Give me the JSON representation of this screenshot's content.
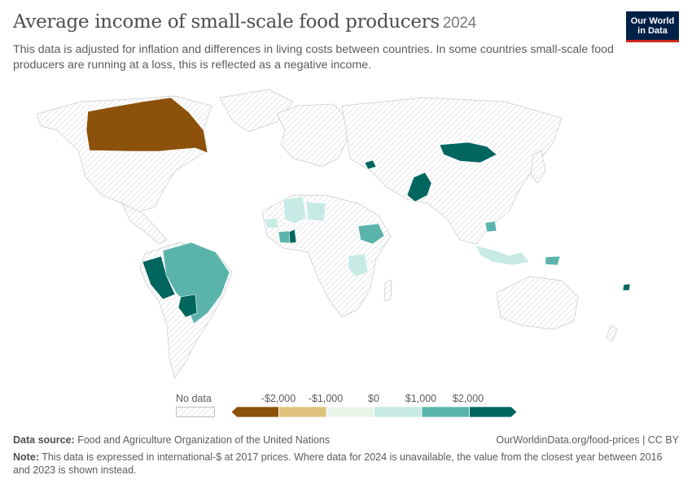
{
  "header": {
    "title": "Average income of small-scale food producers",
    "year": "2024",
    "subtitle": "This data is adjusted for inflation and differences in living costs between countries. In some countries small-scale food producers are running at a loss, this is reflected as a negative income."
  },
  "logo": {
    "line1": "Our World",
    "line2": "in Data",
    "color": "#002147",
    "accent": "#ce261e"
  },
  "legend": {
    "no_data_label": "No data",
    "ticks": [
      "-$2,000",
      "-$1,000",
      "$0",
      "$1,000",
      "$2,000"
    ],
    "colors": [
      "#8c510a",
      "#dfc27d",
      "#e8f4e8",
      "#c7eae5",
      "#5ab4ac",
      "#01665e"
    ]
  },
  "map_data": {
    "type": "choropleth",
    "unit": "international-$",
    "regions": [
      {
        "country": "Canada",
        "bin": 0
      },
      {
        "country": "Peru",
        "bin": 5
      },
      {
        "country": "Brazil",
        "bin": 4
      },
      {
        "country": "Paraguay",
        "bin": 5
      },
      {
        "country": "Mongolia",
        "bin": 5
      },
      {
        "country": "Pakistan",
        "bin": 5
      },
      {
        "country": "Armenia",
        "bin": 5
      },
      {
        "country": "Ghana",
        "bin": 5
      },
      {
        "country": "Ethiopia",
        "bin": 4
      },
      {
        "country": "Tanzania",
        "bin": 3
      },
      {
        "country": "Mali",
        "bin": 3
      },
      {
        "country": "Niger",
        "bin": 3
      },
      {
        "country": "Côte d'Ivoire",
        "bin": 4
      },
      {
        "country": "Guinea",
        "bin": 3
      },
      {
        "country": "Cambodia",
        "bin": 4
      },
      {
        "country": "Indonesia",
        "bin": 3
      },
      {
        "country": "Timor-Leste",
        "bin": 4
      },
      {
        "country": "Fiji",
        "bin": 5
      }
    ]
  },
  "footer": {
    "source_label": "Data source:",
    "source_text": "Food and Agriculture Organization of the United Nations",
    "url": "OurWorldinData.org/food-prices | CC BY",
    "note_label": "Note:",
    "note_text": "This data is expressed in international-$ at 2017 prices. Where data for 2024 is unavailable, the value from the closest year between 2016 and 2023 is shown instead."
  }
}
